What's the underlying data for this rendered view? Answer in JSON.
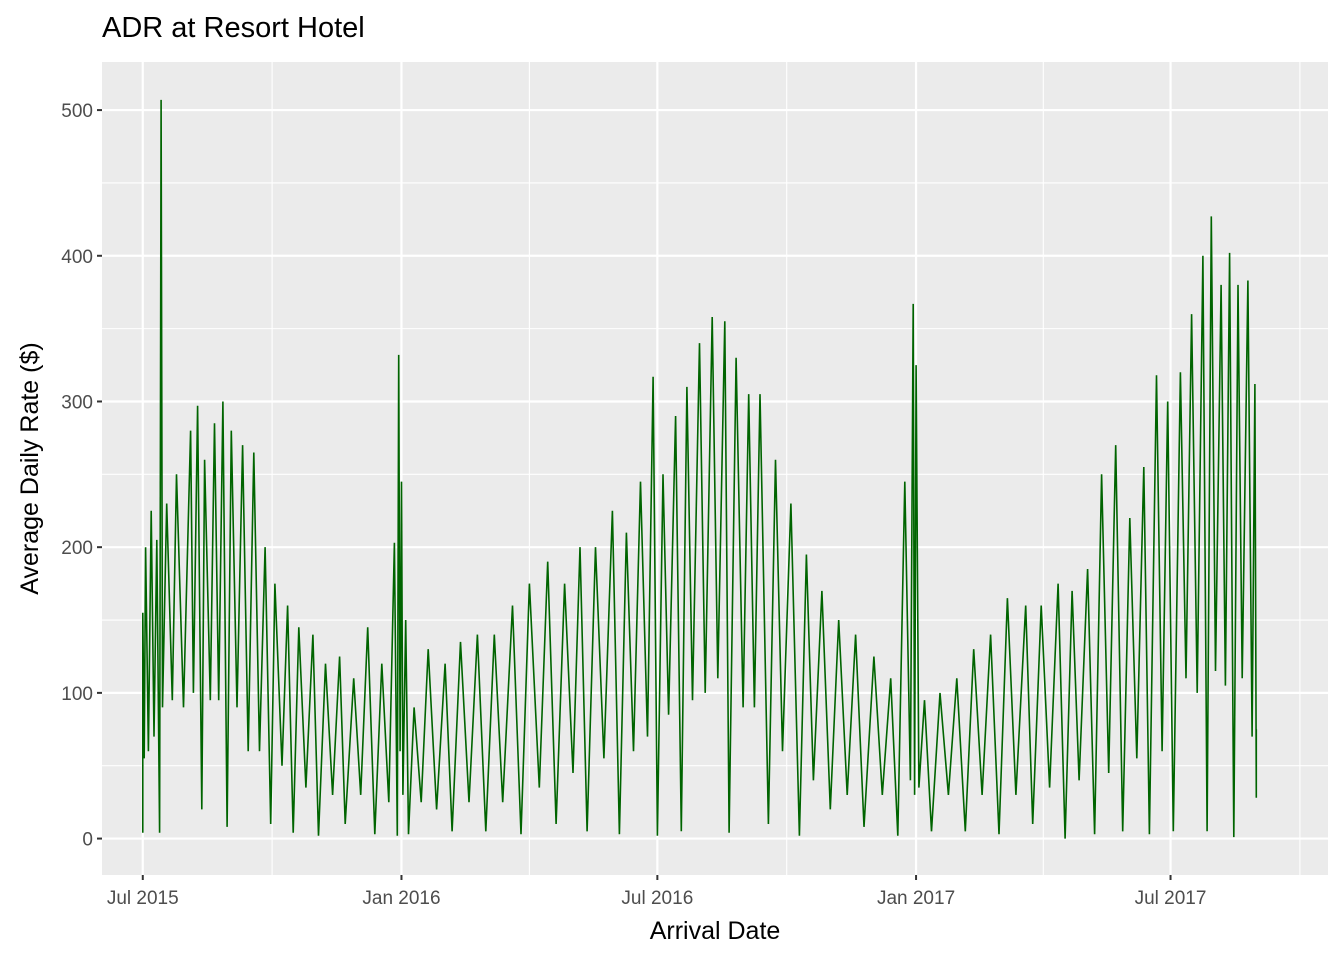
{
  "chart_data": {
    "type": "line",
    "title": "ADR at Resort Hotel",
    "xlabel": "Arrival Date",
    "ylabel": "Average Daily Rate ($)",
    "x_range": [
      "2015-06-02",
      "2017-10-21"
    ],
    "ylim": [
      -25,
      533
    ],
    "x_ticks": [
      {
        "date": "2015-07-01",
        "label": "Jul 2015"
      },
      {
        "date": "2016-01-01",
        "label": "Jan 2016"
      },
      {
        "date": "2016-07-01",
        "label": "Jul 2016"
      },
      {
        "date": "2017-01-01",
        "label": "Jan 2017"
      },
      {
        "date": "2017-07-01",
        "label": "Jul 2017"
      }
    ],
    "y_ticks": [
      0,
      100,
      200,
      300,
      400,
      500
    ],
    "grid": true,
    "background": "#ebebeb",
    "line_color": "#006400",
    "series": [
      {
        "values": [
          [
            "2015-07-01",
            4
          ],
          [
            "2015-07-01",
            155
          ],
          [
            "2015-07-02",
            55
          ],
          [
            "2015-07-03",
            200
          ],
          [
            "2015-07-05",
            60
          ],
          [
            "2015-07-07",
            225
          ],
          [
            "2015-07-09",
            70
          ],
          [
            "2015-07-11",
            205
          ],
          [
            "2015-07-13",
            4
          ],
          [
            "2015-07-14",
            507
          ],
          [
            "2015-07-15",
            90
          ],
          [
            "2015-07-18",
            230
          ],
          [
            "2015-07-22",
            95
          ],
          [
            "2015-07-25",
            250
          ],
          [
            "2015-07-30",
            90
          ],
          [
            "2015-08-04",
            280
          ],
          [
            "2015-08-06",
            100
          ],
          [
            "2015-08-09",
            297
          ],
          [
            "2015-08-12",
            20
          ],
          [
            "2015-08-14",
            260
          ],
          [
            "2015-08-18",
            95
          ],
          [
            "2015-08-21",
            285
          ],
          [
            "2015-08-24",
            95
          ],
          [
            "2015-08-27",
            300
          ],
          [
            "2015-08-30",
            8
          ],
          [
            "2015-09-02",
            280
          ],
          [
            "2015-09-06",
            90
          ],
          [
            "2015-09-10",
            270
          ],
          [
            "2015-09-14",
            60
          ],
          [
            "2015-09-18",
            265
          ],
          [
            "2015-09-22",
            60
          ],
          [
            "2015-09-26",
            200
          ],
          [
            "2015-09-30",
            10
          ],
          [
            "2015-10-03",
            175
          ],
          [
            "2015-10-08",
            50
          ],
          [
            "2015-10-12",
            160
          ],
          [
            "2015-10-16",
            4
          ],
          [
            "2015-10-20",
            145
          ],
          [
            "2015-10-25",
            35
          ],
          [
            "2015-10-30",
            140
          ],
          [
            "2015-11-03",
            2
          ],
          [
            "2015-11-08",
            120
          ],
          [
            "2015-11-13",
            30
          ],
          [
            "2015-11-18",
            125
          ],
          [
            "2015-11-22",
            10
          ],
          [
            "2015-11-28",
            110
          ],
          [
            "2015-12-03",
            30
          ],
          [
            "2015-12-08",
            145
          ],
          [
            "2015-12-13",
            3
          ],
          [
            "2015-12-18",
            120
          ],
          [
            "2015-12-23",
            25
          ],
          [
            "2015-12-27",
            203
          ],
          [
            "2015-12-29",
            2
          ],
          [
            "2015-12-30",
            332
          ],
          [
            "2015-12-31",
            60
          ],
          [
            "2016-01-01",
            245
          ],
          [
            "2016-01-02",
            30
          ],
          [
            "2016-01-04",
            150
          ],
          [
            "2016-01-06",
            3
          ],
          [
            "2016-01-10",
            90
          ],
          [
            "2016-01-15",
            25
          ],
          [
            "2016-01-20",
            130
          ],
          [
            "2016-01-26",
            20
          ],
          [
            "2016-02-01",
            120
          ],
          [
            "2016-02-06",
            5
          ],
          [
            "2016-02-12",
            135
          ],
          [
            "2016-02-18",
            25
          ],
          [
            "2016-02-24",
            140
          ],
          [
            "2016-03-01",
            5
          ],
          [
            "2016-03-07",
            140
          ],
          [
            "2016-03-13",
            25
          ],
          [
            "2016-03-20",
            160
          ],
          [
            "2016-03-26",
            3
          ],
          [
            "2016-04-01",
            175
          ],
          [
            "2016-04-08",
            35
          ],
          [
            "2016-04-14",
            190
          ],
          [
            "2016-04-20",
            10
          ],
          [
            "2016-04-26",
            175
          ],
          [
            "2016-05-02",
            45
          ],
          [
            "2016-05-07",
            200
          ],
          [
            "2016-05-12",
            5
          ],
          [
            "2016-05-18",
            200
          ],
          [
            "2016-05-24",
            55
          ],
          [
            "2016-05-30",
            225
          ],
          [
            "2016-06-04",
            3
          ],
          [
            "2016-06-09",
            210
          ],
          [
            "2016-06-14",
            60
          ],
          [
            "2016-06-19",
            245
          ],
          [
            "2016-06-24",
            70
          ],
          [
            "2016-06-28",
            317
          ],
          [
            "2016-07-01",
            2
          ],
          [
            "2016-07-05",
            250
          ],
          [
            "2016-07-09",
            85
          ],
          [
            "2016-07-14",
            290
          ],
          [
            "2016-07-18",
            5
          ],
          [
            "2016-07-22",
            310
          ],
          [
            "2016-07-26",
            95
          ],
          [
            "2016-07-31",
            340
          ],
          [
            "2016-08-04",
            100
          ],
          [
            "2016-08-09",
            358
          ],
          [
            "2016-08-13",
            110
          ],
          [
            "2016-08-18",
            355
          ],
          [
            "2016-08-21",
            4
          ],
          [
            "2016-08-26",
            330
          ],
          [
            "2016-08-31",
            90
          ],
          [
            "2016-09-04",
            305
          ],
          [
            "2016-09-08",
            90
          ],
          [
            "2016-09-12",
            305
          ],
          [
            "2016-09-18",
            10
          ],
          [
            "2016-09-23",
            260
          ],
          [
            "2016-09-28",
            60
          ],
          [
            "2016-10-04",
            230
          ],
          [
            "2016-10-10",
            2
          ],
          [
            "2016-10-15",
            195
          ],
          [
            "2016-10-20",
            40
          ],
          [
            "2016-10-26",
            170
          ],
          [
            "2016-11-01",
            20
          ],
          [
            "2016-11-07",
            150
          ],
          [
            "2016-11-13",
            30
          ],
          [
            "2016-11-19",
            140
          ],
          [
            "2016-11-25",
            8
          ],
          [
            "2016-12-02",
            125
          ],
          [
            "2016-12-08",
            30
          ],
          [
            "2016-12-14",
            110
          ],
          [
            "2016-12-19",
            2
          ],
          [
            "2016-12-24",
            245
          ],
          [
            "2016-12-28",
            40
          ],
          [
            "2016-12-30",
            367
          ],
          [
            "2016-12-31",
            30
          ],
          [
            "2017-01-01",
            325
          ],
          [
            "2017-01-03",
            35
          ],
          [
            "2017-01-07",
            95
          ],
          [
            "2017-01-12",
            5
          ],
          [
            "2017-01-18",
            100
          ],
          [
            "2017-01-24",
            30
          ],
          [
            "2017-01-30",
            110
          ],
          [
            "2017-02-05",
            5
          ],
          [
            "2017-02-11",
            130
          ],
          [
            "2017-02-17",
            30
          ],
          [
            "2017-02-23",
            140
          ],
          [
            "2017-03-01",
            3
          ],
          [
            "2017-03-07",
            165
          ],
          [
            "2017-03-13",
            30
          ],
          [
            "2017-03-20",
            160
          ],
          [
            "2017-03-25",
            10
          ],
          [
            "2017-03-31",
            160
          ],
          [
            "2017-04-06",
            35
          ],
          [
            "2017-04-12",
            175
          ],
          [
            "2017-04-17",
            0
          ],
          [
            "2017-04-22",
            170
          ],
          [
            "2017-04-27",
            40
          ],
          [
            "2017-05-03",
            185
          ],
          [
            "2017-05-08",
            3
          ],
          [
            "2017-05-13",
            250
          ],
          [
            "2017-05-18",
            45
          ],
          [
            "2017-05-23",
            270
          ],
          [
            "2017-05-28",
            5
          ],
          [
            "2017-06-02",
            220
          ],
          [
            "2017-06-07",
            55
          ],
          [
            "2017-06-12",
            255
          ],
          [
            "2017-06-16",
            3
          ],
          [
            "2017-06-21",
            318
          ],
          [
            "2017-06-25",
            60
          ],
          [
            "2017-06-29",
            300
          ],
          [
            "2017-07-03",
            5
          ],
          [
            "2017-07-08",
            320
          ],
          [
            "2017-07-12",
            110
          ],
          [
            "2017-07-16",
            360
          ],
          [
            "2017-07-20",
            100
          ],
          [
            "2017-07-24",
            400
          ],
          [
            "2017-07-27",
            5
          ],
          [
            "2017-07-30",
            427
          ],
          [
            "2017-08-02",
            115
          ],
          [
            "2017-08-06",
            380
          ],
          [
            "2017-08-09",
            105
          ],
          [
            "2017-08-12",
            402
          ],
          [
            "2017-08-15",
            1
          ],
          [
            "2017-08-18",
            380
          ],
          [
            "2017-08-21",
            110
          ],
          [
            "2017-08-25",
            383
          ],
          [
            "2017-08-28",
            70
          ],
          [
            "2017-08-30",
            312
          ],
          [
            "2017-08-31",
            28
          ],
          [
            "2017-08-31",
            75
          ]
        ]
      }
    ]
  }
}
